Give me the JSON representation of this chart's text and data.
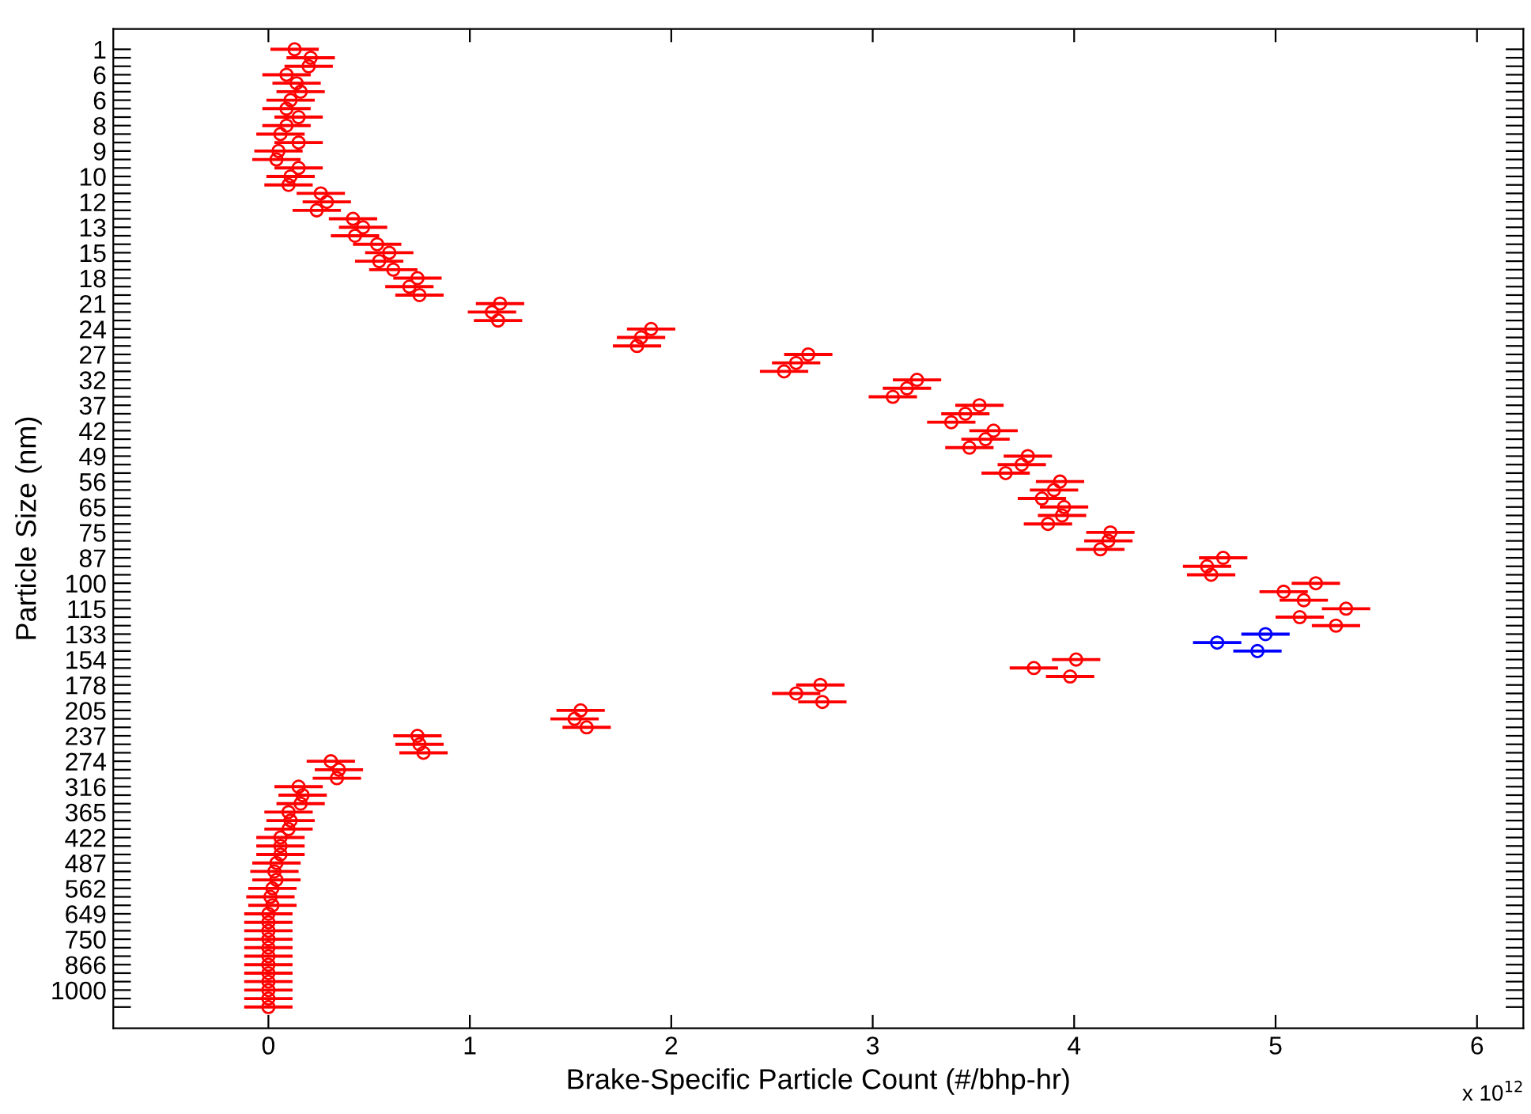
{
  "chart_data": {
    "type": "scatter",
    "orientation": "horizontal",
    "xlabel": "Brake-Specific Particle Count (#/bhp-hr)",
    "ylabel": "Particle Size (nm)",
    "annotations": [
      "x 10$^{12}$"
    ],
    "categories": [
      "1",
      null,
      null,
      "6",
      null,
      null,
      "6",
      null,
      null,
      "8",
      null,
      null,
      "9",
      null,
      null,
      "10",
      null,
      null,
      "12",
      null,
      null,
      "13",
      null,
      null,
      "15",
      null,
      null,
      "18",
      null,
      null,
      "21",
      null,
      null,
      "24",
      null,
      null,
      "27",
      null,
      null,
      "32",
      null,
      null,
      "37",
      null,
      null,
      "42",
      null,
      null,
      "49",
      null,
      null,
      "56",
      null,
      null,
      "65",
      null,
      null,
      "75",
      null,
      null,
      "87",
      null,
      null,
      "100",
      null,
      null,
      "115",
      null,
      null,
      "133",
      null,
      null,
      "154",
      null,
      null,
      "178",
      null,
      null,
      "205",
      null,
      null,
      "237",
      null,
      null,
      "274",
      null,
      null,
      "316",
      null,
      null,
      "365",
      null,
      null,
      "422",
      null,
      null,
      "487",
      null,
      null,
      "562",
      null,
      null,
      "649",
      null,
      null,
      "750",
      null,
      null,
      "866",
      null,
      null,
      "1000",
      null,
      null
    ],
    "xlim": [
      -0.77,
      6.23
    ],
    "xticks": [
      0,
      1,
      2,
      3,
      4,
      5,
      6
    ],
    "grid": false,
    "marker": "circle",
    "series": [
      {
        "color": "#ff0000",
        "values": [
          0.13,
          0.21,
          0.2,
          0.09,
          0.14,
          0.16,
          0.11,
          0.09,
          0.15,
          0.09,
          0.06,
          0.15,
          0.05,
          0.04,
          0.15,
          0.11,
          0.1,
          0.26,
          0.29,
          0.24,
          0.42,
          0.47,
          0.43,
          0.54,
          0.6,
          0.55,
          0.62,
          0.74,
          0.7,
          0.75,
          1.15,
          1.11,
          1.14,
          1.9,
          1.85,
          1.83,
          2.68,
          2.62,
          2.56,
          3.22,
          3.17,
          3.1,
          3.53,
          3.46,
          3.39,
          3.6,
          3.56,
          3.48,
          3.77,
          3.74,
          3.66,
          3.93,
          3.9,
          3.84,
          3.95,
          3.94,
          3.87,
          4.18,
          4.17,
          4.13,
          4.74,
          4.66,
          4.68,
          5.2,
          5.04,
          5.14,
          5.35,
          5.12,
          5.3,
          null,
          null,
          null,
          4.01,
          3.8,
          3.98,
          2.74,
          2.62,
          2.75,
          1.55,
          1.52,
          1.58,
          0.74,
          0.75,
          0.77,
          0.31,
          0.35,
          0.34,
          0.15,
          0.17,
          0.16,
          0.1,
          0.11,
          0.1,
          0.06,
          0.06,
          0.06,
          0.04,
          0.03,
          0.04,
          0.02,
          0.01,
          0.02,
          0,
          0,
          0,
          0,
          0,
          0,
          0,
          0,
          0,
          0,
          0,
          0
        ],
        "errors": [
          0.12,
          0.12,
          0.12,
          0.12,
          0.12,
          0.12,
          0.12,
          0.12,
          0.12,
          0.12,
          0.12,
          0.12,
          0.12,
          0.12,
          0.12,
          0.12,
          0.12,
          0.12,
          0.12,
          0.12,
          0.12,
          0.12,
          0.12,
          0.12,
          0.12,
          0.12,
          0.12,
          0.12,
          0.12,
          0.12,
          0.12,
          0.12,
          0.12,
          0.12,
          0.12,
          0.12,
          0.12,
          0.12,
          0.12,
          0.12,
          0.12,
          0.12,
          0.12,
          0.12,
          0.12,
          0.12,
          0.12,
          0.12,
          0.12,
          0.12,
          0.12,
          0.12,
          0.12,
          0.12,
          0.12,
          0.12,
          0.12,
          0.12,
          0.12,
          0.12,
          0.12,
          0.12,
          0.12,
          0.12,
          0.12,
          0.12,
          0.12,
          0.12,
          0.12,
          null,
          null,
          null,
          0.12,
          0.12,
          0.12,
          0.12,
          0.12,
          0.12,
          0.12,
          0.12,
          0.12,
          0.12,
          0.12,
          0.12,
          0.12,
          0.12,
          0.12,
          0.12,
          0.12,
          0.12,
          0.12,
          0.12,
          0.12,
          0.12,
          0.12,
          0.12,
          0.12,
          0.12,
          0.12,
          0.12,
          0.12,
          0.12,
          0.12,
          0.12,
          0.12,
          0.12,
          0.12,
          0.12,
          0.12,
          0.12,
          0.12,
          0.12,
          0.12,
          0.12
        ]
      },
      {
        "color": "#0000ff",
        "values": [
          null,
          null,
          null,
          null,
          null,
          null,
          null,
          null,
          null,
          null,
          null,
          null,
          null,
          null,
          null,
          null,
          null,
          null,
          null,
          null,
          null,
          null,
          null,
          null,
          null,
          null,
          null,
          null,
          null,
          null,
          null,
          null,
          null,
          null,
          null,
          null,
          null,
          null,
          null,
          null,
          null,
          null,
          null,
          null,
          null,
          null,
          null,
          null,
          null,
          null,
          null,
          null,
          null,
          null,
          null,
          null,
          null,
          null,
          null,
          null,
          null,
          null,
          null,
          null,
          null,
          null,
          null,
          null,
          null,
          4.95,
          4.71,
          4.91,
          null,
          null,
          null,
          null,
          null,
          null,
          null,
          null,
          null,
          null,
          null,
          null,
          null,
          null,
          null,
          null,
          null,
          null,
          null,
          null,
          null,
          null,
          null,
          null,
          null,
          null,
          null,
          null,
          null,
          null,
          null,
          null,
          null,
          null,
          null,
          null,
          null,
          null,
          null,
          null,
          null,
          null
        ],
        "errors": [
          null,
          null,
          null,
          null,
          null,
          null,
          null,
          null,
          null,
          null,
          null,
          null,
          null,
          null,
          null,
          null,
          null,
          null,
          null,
          null,
          null,
          null,
          null,
          null,
          null,
          null,
          null,
          null,
          null,
          null,
          null,
          null,
          null,
          null,
          null,
          null,
          null,
          null,
          null,
          null,
          null,
          null,
          null,
          null,
          null,
          null,
          null,
          null,
          null,
          null,
          null,
          null,
          null,
          null,
          null,
          null,
          null,
          null,
          null,
          null,
          null,
          null,
          null,
          null,
          null,
          null,
          null,
          null,
          null,
          0.12,
          0.12,
          0.12,
          null,
          null,
          null,
          null,
          null,
          null,
          null,
          null,
          null,
          null,
          null,
          null,
          null,
          null,
          null,
          null,
          null,
          null,
          null,
          null,
          null,
          null,
          null,
          null,
          null,
          null,
          null,
          null,
          null,
          null,
          null,
          null,
          null,
          null,
          null,
          null,
          null,
          null,
          null,
          null,
          null,
          null
        ]
      }
    ]
  }
}
